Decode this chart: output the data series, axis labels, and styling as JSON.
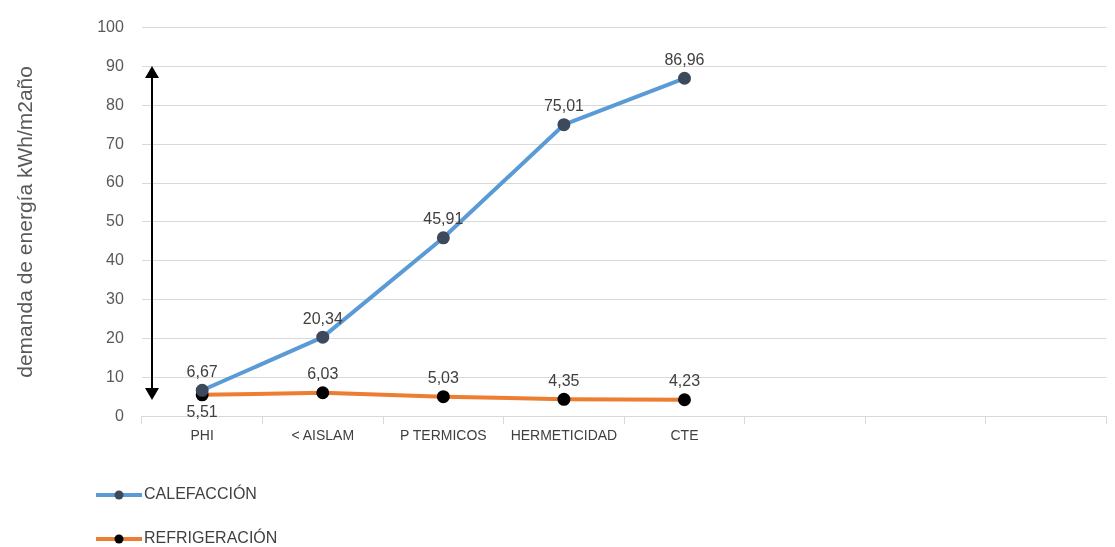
{
  "chart_data": {
    "type": "line",
    "ylabel": "demanda de energía kWh/m2año",
    "categories": [
      "PHI",
      "< AISLAM",
      "P TERMICOS",
      "HERMETICIDAD",
      "CTE",
      null,
      null,
      null
    ],
    "series": [
      {
        "name": "CALEFACCIÓN",
        "color": "#5b9bd5",
        "values": [
          6.67,
          20.34,
          45.91,
          75.01,
          86.96,
          null,
          null,
          null
        ],
        "value_labels": [
          "6,67",
          "20,34",
          "45,91",
          "75,01",
          "86,96",
          null,
          null,
          null
        ]
      },
      {
        "name": "REFRIGERACIÓN",
        "color": "#ed7d31",
        "values": [
          5.51,
          6.03,
          5.03,
          4.35,
          4.23,
          null,
          null,
          null
        ],
        "value_labels": [
          "5,51",
          "6,03",
          "5,03",
          "4,35",
          "4,23",
          null,
          null,
          null
        ]
      }
    ],
    "ylim": [
      0,
      100
    ],
    "yticks": [
      0,
      10,
      20,
      30,
      40,
      50,
      60,
      70,
      80,
      90,
      100
    ],
    "grid": "y",
    "legend": "bottom left",
    "marker": "circle",
    "line_style": "solid"
  }
}
